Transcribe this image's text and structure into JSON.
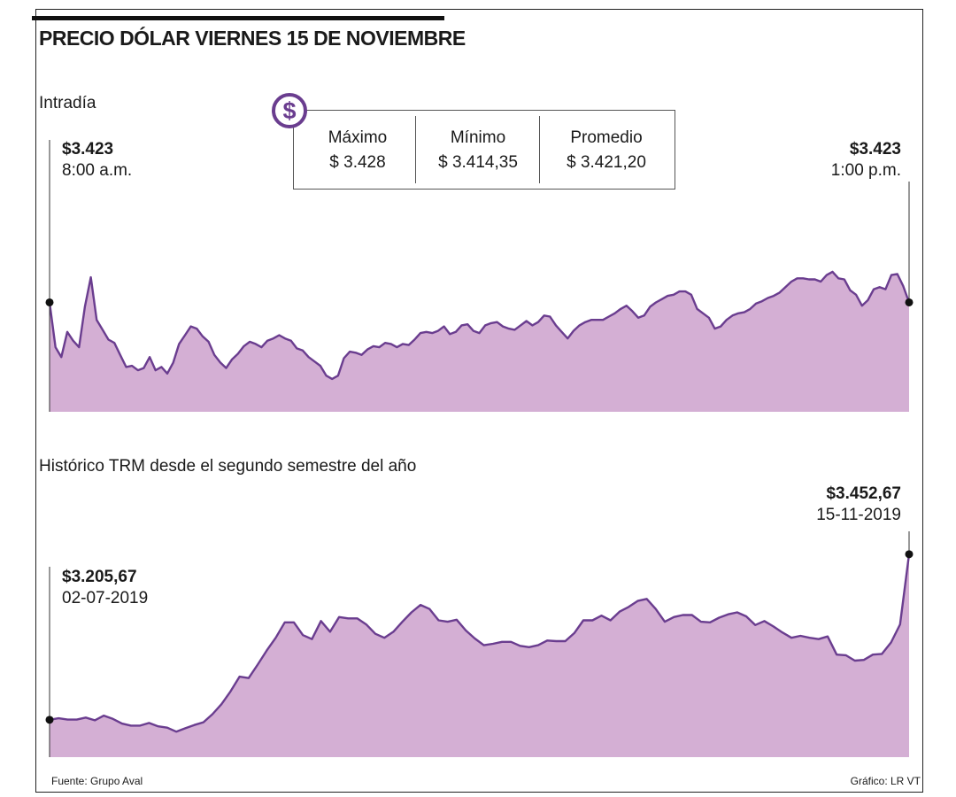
{
  "header": {
    "title": "PRECIO DÓLAR VIERNES 15 DE NOVIEMBRE"
  },
  "intraday": {
    "section_label": "Intradía",
    "summary": [
      {
        "label": "Máximo",
        "value": "$ 3.428"
      },
      {
        "label": "Mínimo",
        "value": "$ 3.414,35"
      },
      {
        "label": "Promedio",
        "value": "$ 3.421,20"
      }
    ],
    "start": {
      "value": "$3.423",
      "time": "8:00 a.m."
    },
    "end": {
      "value": "$3.423",
      "time": "1:00 p.m."
    }
  },
  "historic": {
    "section_label": "Histórico TRM desde el segundo semestre del año",
    "start": {
      "value": "$3.205,67",
      "date": "02-07-2019"
    },
    "end": {
      "value": "$3.452,67",
      "date": "15-11-2019"
    }
  },
  "footer": {
    "source": "Fuente: Grupo Aval",
    "credit": "Gráfico: LR VT"
  },
  "colors": {
    "line": "#6a3d8f",
    "fill": "#d4afd4",
    "marker": "#111111"
  },
  "chart_data": [
    {
      "type": "area",
      "x_start": "8:00 a.m.",
      "x_end": "1:00 p.m.",
      "ylim": [
        3413,
        3430
      ],
      "y": [
        3423,
        3418.9,
        3418.0,
        3420.3,
        3419.5,
        3418.9,
        3422.6,
        3425.3,
        3421.4,
        3420.5,
        3419.6,
        3419.3,
        3418.2,
        3417.1,
        3417.2,
        3416.8,
        3417.0,
        3418.0,
        3416.8,
        3417.1,
        3416.5,
        3417.5,
        3419.2,
        3420.0,
        3420.8,
        3420.6,
        3419.9,
        3419.4,
        3418.2,
        3417.5,
        3417.0,
        3417.8,
        3418.3,
        3419.0,
        3419.4,
        3419.2,
        3418.9,
        3419.5,
        3419.7,
        3420.0,
        3419.7,
        3419.5,
        3418.8,
        3418.6,
        3418.0,
        3417.6,
        3417.2,
        3416.3,
        3416.0,
        3416.3,
        3417.9,
        3418.5,
        3418.4,
        3418.2,
        3418.7,
        3419.0,
        3418.9,
        3419.3,
        3419.2,
        3418.9,
        3419.2,
        3419.1,
        3419.6,
        3420.2,
        3420.3,
        3420.2,
        3420.4,
        3420.8,
        3420.1,
        3420.3,
        3420.9,
        3421.0,
        3420.4,
        3420.2,
        3420.9,
        3421.1,
        3421.2,
        3420.8,
        3420.6,
        3420.5,
        3420.9,
        3421.3,
        3420.9,
        3421.2,
        3421.8,
        3421.7,
        3420.9,
        3420.3,
        3419.7,
        3420.4,
        3420.9,
        3421.2,
        3421.4,
        3421.4,
        3421.4,
        3421.7,
        3422.0,
        3422.4,
        3422.7,
        3422.2,
        3421.6,
        3421.8,
        3422.6,
        3423.0,
        3423.3,
        3423.6,
        3423.7,
        3424.0,
        3424.0,
        3423.7,
        3422.4,
        3422.0,
        3421.6,
        3420.6,
        3420.8,
        3421.4,
        3421.8,
        3422.0,
        3422.1,
        3422.4,
        3422.9,
        3423.1,
        3423.4,
        3423.6,
        3423.9,
        3424.4,
        3424.9,
        3425.2,
        3425.2,
        3425.1,
        3425.1,
        3424.9,
        3425.5,
        3425.8,
        3425.2,
        3425.1,
        3424.1,
        3423.7,
        3422.7,
        3423.2,
        3424.2,
        3424.4,
        3424.2,
        3425.5,
        3425.6,
        3424.5,
        3423.0
      ]
    },
    {
      "type": "area",
      "x_start": "02-07-2019",
      "x_end": "15-11-2019",
      "ylim": [
        3150,
        3500
      ],
      "y": [
        3205.67,
        3208,
        3206,
        3206,
        3209,
        3205,
        3212,
        3207,
        3200,
        3197,
        3197,
        3201,
        3196,
        3194,
        3188,
        3193,
        3198,
        3202,
        3214,
        3229,
        3248,
        3270,
        3268,
        3288,
        3309,
        3328,
        3351,
        3351,
        3332,
        3326,
        3353,
        3337,
        3359,
        3357,
        3357,
        3348,
        3334,
        3328,
        3337,
        3352,
        3366,
        3377,
        3371,
        3354,
        3352,
        3355,
        3339,
        3327,
        3317,
        3319,
        3322,
        3322,
        3316,
        3314,
        3317,
        3324,
        3323,
        3323,
        3335,
        3354,
        3354,
        3361,
        3354,
        3367,
        3374,
        3383,
        3386,
        3371,
        3352,
        3359,
        3362,
        3362,
        3352,
        3351,
        3358,
        3363,
        3366,
        3360,
        3347,
        3353,
        3345,
        3336,
        3328,
        3331,
        3328,
        3326,
        3330,
        3303,
        3302,
        3294,
        3295,
        3303,
        3304,
        3321,
        3348,
        3452.67
      ]
    }
  ]
}
